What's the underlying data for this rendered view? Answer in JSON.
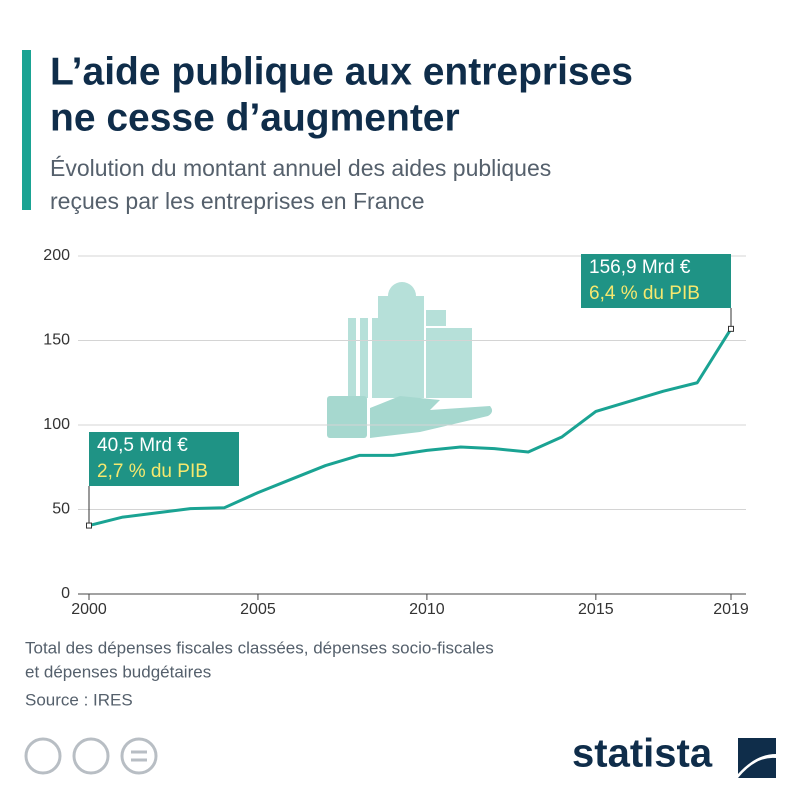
{
  "chart_data": {
    "type": "line",
    "title": [
      "L’aide publique aux entreprises",
      "ne cesse d’augmenter"
    ],
    "subtitle": [
      "Évolution du montant annuel des aides publiques",
      "reçues par les entreprises en France"
    ],
    "x": [
      2000,
      2001,
      2002,
      2003,
      2004,
      2005,
      2006,
      2007,
      2008,
      2009,
      2010,
      2011,
      2012,
      2013,
      2014,
      2015,
      2016,
      2017,
      2018,
      2019
    ],
    "series": [
      {
        "color": "#1aa393",
        "values": [
          40.5,
          45.5,
          48,
          50.5,
          51,
          60,
          68,
          76,
          82,
          82,
          85,
          87,
          86,
          84,
          93,
          108,
          114,
          120,
          125,
          156.9
        ]
      }
    ],
    "xlim": [
      2000,
      2019
    ],
    "xticks": [
      2000,
      2005,
      2010,
      2015,
      2019
    ],
    "ylim": [
      0,
      200
    ],
    "yticks": [
      0,
      50,
      100,
      150,
      200
    ],
    "grid": true,
    "annotations": [
      {
        "line1": "40,5 Mrd €",
        "line2": "2,7 % du PIB"
      },
      {
        "line1": "156,9 Mrd €",
        "line2": "6,4 % du PIB"
      }
    ],
    "footnote": [
      "Total des dépenses fiscales classées, dépenses socio-fiscales",
      "et dépenses budgétaires"
    ],
    "source": "Source : IRES",
    "brand": "statista"
  }
}
